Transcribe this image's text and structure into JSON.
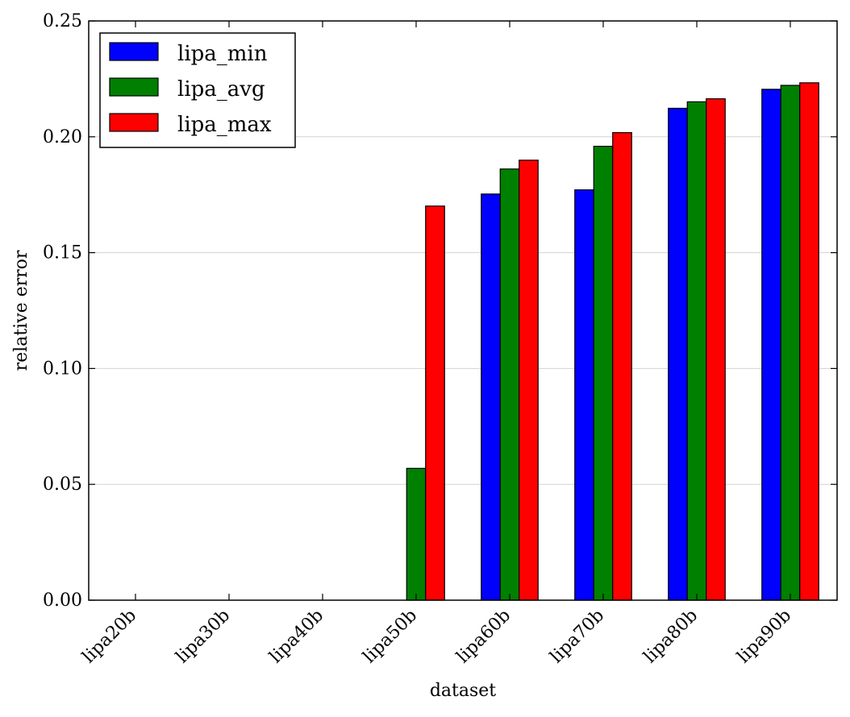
{
  "chart_data": {
    "type": "bar",
    "title": "",
    "xlabel": "dataset",
    "ylabel": "relative error",
    "categories": [
      "lipa20b",
      "lipa30b",
      "lipa40b",
      "lipa50b",
      "lipa60b",
      "lipa70b",
      "lipa80b",
      "lipa90b"
    ],
    "series": [
      {
        "name": "lipa_min",
        "color": "#0000ff",
        "values": [
          0,
          0,
          0,
          0,
          0.1753,
          0.1771,
          0.2123,
          0.2205
        ]
      },
      {
        "name": "lipa_avg",
        "color": "#008000",
        "values": [
          0,
          0,
          0,
          0.0569,
          0.1861,
          0.1959,
          0.2151,
          0.2222
        ]
      },
      {
        "name": "lipa_max",
        "color": "#ff0000",
        "values": [
          0,
          0,
          0,
          0.1701,
          0.1899,
          0.2018,
          0.2164,
          0.2233
        ]
      }
    ],
    "ylim": [
      0,
      0.25
    ],
    "yticks": [
      "0.00",
      "0.05",
      "0.10",
      "0.15",
      "0.20",
      "0.25"
    ],
    "grid": "horizontal",
    "legend_position": "top-left"
  }
}
